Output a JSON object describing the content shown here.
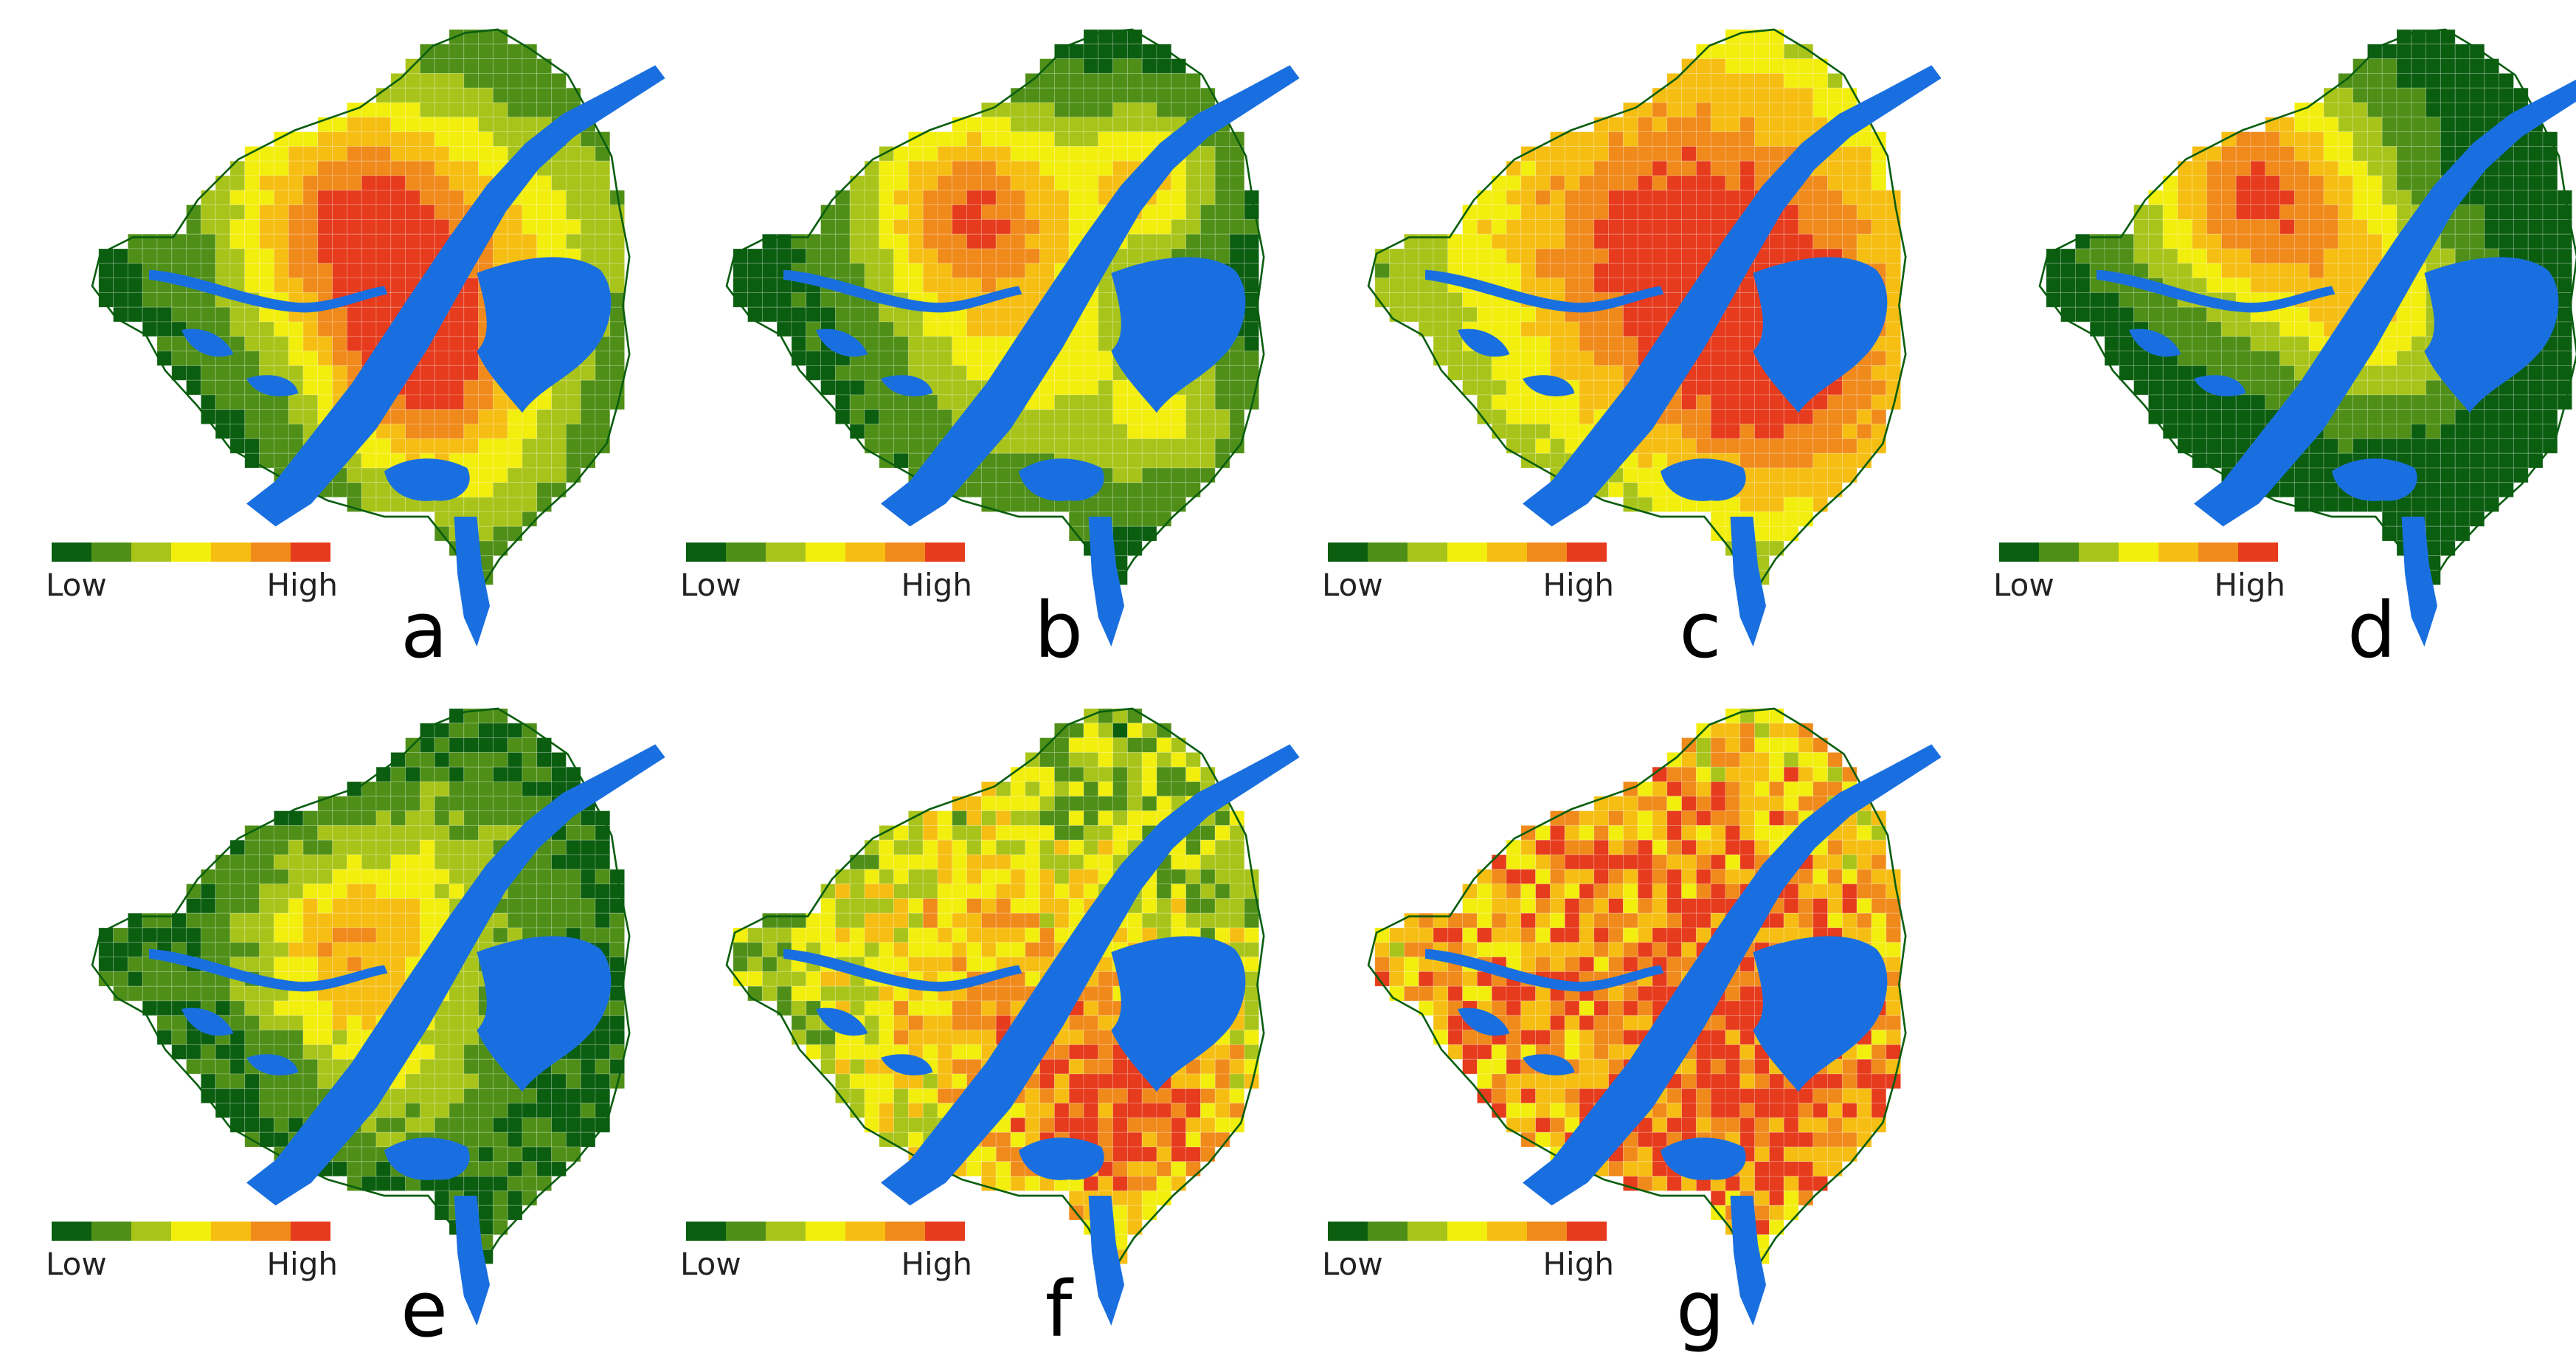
{
  "figure": {
    "legend": {
      "low_label": "Low",
      "high_label": "High",
      "colors": [
        "#0b5e10",
        "#4f8f17",
        "#a8c41a",
        "#f2ee0d",
        "#f6be13",
        "#f08a1b",
        "#e63b1c"
      ]
    },
    "water_color": "#1a6fe0",
    "panels": [
      {
        "letter": "a",
        "pattern": "two-hotspots-river-banks"
      },
      {
        "letter": "b",
        "pattern": "hotspots-west-and-north"
      },
      {
        "letter": "c",
        "pattern": "broad-moderate-center"
      },
      {
        "letter": "d",
        "pattern": "single-hotspot-west"
      },
      {
        "letter": "e",
        "pattern": "mostly-low-scattered"
      },
      {
        "letter": "f",
        "pattern": "widespread-mixed"
      },
      {
        "letter": "g",
        "pattern": "widespread-high"
      }
    ]
  }
}
